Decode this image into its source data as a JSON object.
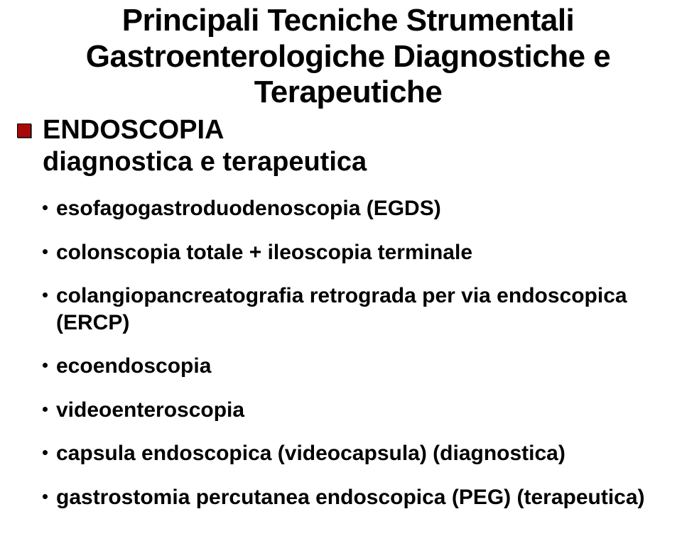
{
  "title_line1": "Principali Tecniche Strumentali",
  "title_line2": "Gastroenterologiche Diagnostiche e",
  "title_line3": "Terapeutiche",
  "section": {
    "line1": "ENDOSCOPIA",
    "line2": "diagnostica e terapeutica"
  },
  "items": [
    "esofagogastroduodenoscopia (EGDS)",
    "colonscopia totale + ileoscopia terminale",
    "colangiopancreatografia retrograda per via endoscopica (ERCP)",
    "ecoendoscopia",
    "videoenteroscopia",
    "capsula endoscopica (videocapsula) (diagnostica)",
    "gastrostomia percutanea endoscopica (PEG) (terapeutica)"
  ],
  "colors": {
    "bullet": "#a90808",
    "text": "#000000",
    "background": "#ffffff"
  },
  "fonts": {
    "title_size": 44,
    "section_size": 38,
    "item_size": 30,
    "family": "Arial"
  }
}
